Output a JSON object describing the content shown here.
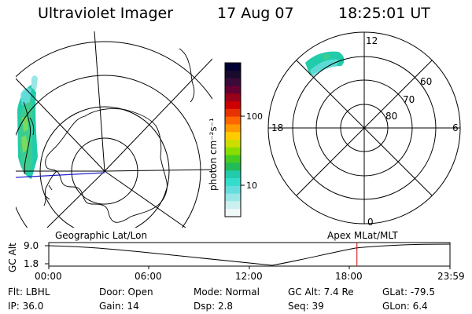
{
  "header": {
    "instrument": "Ultraviolet Imager",
    "date": "17 Aug 07",
    "time": "18:25:01 UT"
  },
  "colorbar": {
    "unit_label": "photon cm⁻²s⁻¹",
    "ticks": [
      "100",
      "10"
    ],
    "colors": [
      "#000033",
      "#1a0a2e",
      "#3a0a3a",
      "#660033",
      "#99001a",
      "#cc0000",
      "#e63300",
      "#ff6600",
      "#ff9900",
      "#ffcc00",
      "#ccdd00",
      "#88dd00",
      "#44cc22",
      "#22bb55",
      "#22ccaa",
      "#33ddcc",
      "#66dddd",
      "#99e6e6",
      "#ccf0f0",
      "#f0f8f8"
    ]
  },
  "geo_panel": {
    "label": "Geographic Lat/Lon"
  },
  "mlt_panel": {
    "label": "Apex MLat/MLT",
    "hour_labels": {
      "top": "12",
      "left": "18",
      "right": "6",
      "bottom": "0"
    },
    "lat_labels": [
      "60",
      "70",
      "80"
    ]
  },
  "alt_plot": {
    "axis_label": "GC Alt",
    "y_ticks": [
      "9.0",
      "1.8"
    ],
    "x_ticks": [
      "00:00",
      "06:00",
      "12:00",
      "18:00",
      "23:59"
    ],
    "current_time_hours": 18.42,
    "accent": "#cc0000"
  },
  "footer": {
    "flt": "Flt:  LBHL",
    "ip": "IP:  36.0",
    "door": "Door:  Open",
    "gain": "Gain:  14",
    "mode": "Mode:  Normal",
    "dsp": "Dsp:      2.8",
    "gc_alt": "GC Alt:  7.4 Re",
    "seq": "Seq:  39",
    "glat": "GLat:  -79.5",
    "glon": "GLon:     6.4"
  }
}
